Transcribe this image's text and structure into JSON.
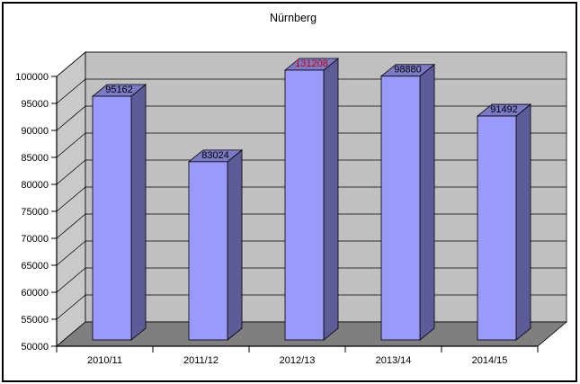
{
  "chart_data": {
    "type": "bar",
    "style": "3d-column",
    "title": "Nürnberg",
    "categories": [
      "2010/11",
      "2011/12",
      "2012/13",
      "2013/14",
      "2014/15"
    ],
    "values": [
      95162,
      83024,
      131208,
      98880,
      91492
    ],
    "data_labels": [
      "95162",
      "83024",
      "131208",
      "98880",
      "91492"
    ],
    "data_label_colors": [
      "#000000",
      "#000000",
      "#cc0000",
      "#000000",
      "#000000"
    ],
    "ylim": [
      50000,
      100000
    ],
    "ytick_step": 5000,
    "ytick_labels": [
      "100000",
      "95000",
      "90000",
      "85000",
      "80000",
      "75000",
      "70000",
      "65000",
      "60000",
      "55000",
      "50000"
    ],
    "xlabel": "",
    "ylabel": "",
    "grid": "on",
    "legend": "none",
    "colors": {
      "bar_front": "#9a9afa",
      "bar_side": "#5c5c98",
      "bar_top": "#7a7ac6",
      "back_wall": "#c0c0c0",
      "left_wall": "#c9c9c9",
      "floor": "#7f7f7f",
      "gridline": "#000000",
      "axis": "#000000",
      "title_color": "#000000"
    }
  }
}
